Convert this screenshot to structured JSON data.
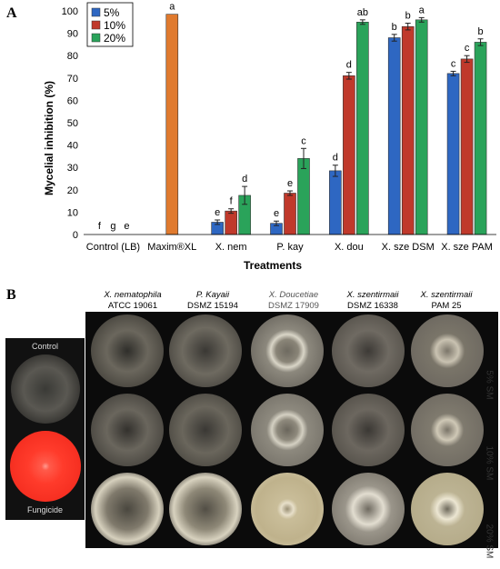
{
  "panel_a_label": "A",
  "panel_b_label": "B",
  "chart_data": {
    "type": "bar",
    "title": "",
    "xlabel": "Treatments",
    "ylabel": "Mycelial inhibition (%)",
    "ylim": [
      0,
      100
    ],
    "yticks": [
      0,
      10,
      20,
      30,
      40,
      50,
      60,
      70,
      80,
      90,
      100
    ],
    "grid": false,
    "legend_position": "top-left",
    "categories": [
      "Control (LB)",
      "Maxim®XL",
      "X. nem",
      "P. kay",
      "X. dou",
      "X. sze DSM",
      "X. sze PAM"
    ],
    "series": [
      {
        "name": "5%",
        "color": "#2e67c2",
        "values": [
          0,
          null,
          5.5,
          5,
          28.5,
          88,
          72
        ],
        "errors": [
          0,
          null,
          1,
          1,
          2.5,
          1.5,
          1
        ],
        "letters": [
          "f",
          "",
          "e",
          "e",
          "d",
          "b",
          "c"
        ]
      },
      {
        "name": "10%",
        "color": "#c0392b",
        "values": [
          0,
          98.5,
          10.5,
          18.5,
          71,
          93,
          78.5
        ],
        "errors": [
          0,
          0,
          1,
          1,
          1.5,
          1.5,
          1.5
        ],
        "letters": [
          "g",
          "a",
          "f",
          "e",
          "d",
          "b",
          "c"
        ]
      },
      {
        "name": "20%",
        "color": "#2aa35a",
        "values": [
          0,
          null,
          17.5,
          34,
          95,
          96,
          86
        ],
        "errors": [
          0,
          null,
          4,
          4.5,
          1,
          1,
          1.5
        ],
        "letters": [
          "e",
          "",
          "d",
          "c",
          "ab",
          "a",
          "b"
        ]
      }
    ],
    "single_bar_color": "#e07a2e"
  },
  "panel_b": {
    "control_label": "Control",
    "fungicide_label": "Fungicide",
    "strains": [
      {
        "species": "X. nematophila",
        "accession": "ATCC 19061"
      },
      {
        "species": "P. Kayaii",
        "accession": "DSMZ 15194"
      },
      {
        "species": "X. Doucetiae",
        "accession": "DSMZ 17909"
      },
      {
        "species": "X. szentirmaii",
        "accession": "DSMZ 16338"
      },
      {
        "species": "X. szentirmaii",
        "accession": "PAM 25"
      }
    ],
    "rows": [
      "5% SM",
      "10% SM",
      "20% SM"
    ]
  }
}
